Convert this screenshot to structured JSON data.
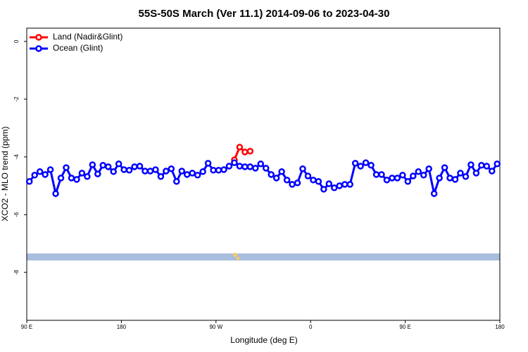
{
  "chart_data": {
    "type": "line",
    "title": "55S-50S March (Ver 11.1)   2014-09-06 to 2023-04-30",
    "xlabel": "Longitude (deg E)",
    "ylabel": "XCO2 - MLO trend (ppm)",
    "xlim": [
      90,
      540
    ],
    "xticks": [
      {
        "value": 90,
        "label": "90 E"
      },
      180,
      {
        "value": 270,
        "label": "90 W"
      },
      {
        "value": 360,
        "label": "0"
      },
      {
        "value": 450,
        "label": "90 E"
      },
      {
        "value": 540,
        "label": "180"
      }
    ],
    "ylim": [
      -9.66,
      0.46
    ],
    "yticks": [
      0,
      -2,
      -4,
      -6,
      -8
    ],
    "legend": "top-left",
    "series": [
      {
        "name": "Land (Nadir&Glint)",
        "color": "#ff0000",
        "x": [
          287.5,
          292.5,
          297.5,
          302.5
        ],
        "values": [
          -4.1,
          -3.66,
          -3.83,
          -3.8
        ]
      },
      {
        "name": "Ocean (Glint)",
        "color": "#0000ff",
        "x": [
          92.5,
          97.5,
          102.5,
          107.5,
          112.5,
          117.5,
          122.5,
          127.5,
          132.5,
          137.5,
          142.5,
          147.5,
          152.5,
          157.5,
          162.5,
          167.5,
          172.5,
          177.5,
          182.5,
          187.5,
          192.5,
          197.5,
          202.5,
          207.5,
          212.5,
          217.5,
          222.5,
          227.5,
          232.5,
          237.5,
          242.5,
          247.5,
          252.5,
          257.5,
          262.5,
          267.5,
          272.5,
          277.5,
          282.5,
          287.5,
          292.5,
          297.5,
          302.5,
          307.5,
          312.5,
          317.5,
          322.5,
          327.5,
          332.5,
          337.5,
          342.5,
          347.5,
          352.5,
          357.5,
          362.5,
          367.5,
          372.5,
          377.5,
          382.5,
          387.5,
          392.5,
          397.5,
          402.5,
          407.5,
          412.5,
          417.5,
          422.5,
          427.5,
          432.5,
          437.5,
          442.5,
          447.5,
          452.5,
          457.5,
          462.5,
          467.5,
          472.5,
          477.5,
          482.5,
          487.5,
          492.5,
          497.5,
          502.5,
          507.5,
          512.5,
          517.5,
          522.5,
          527.5,
          532.5,
          537.5
        ],
        "values": [
          -4.85,
          -4.63,
          -4.51,
          -4.61,
          -4.44,
          -5.27,
          -4.73,
          -4.37,
          -4.73,
          -4.78,
          -4.56,
          -4.68,
          -4.27,
          -4.59,
          -4.29,
          -4.34,
          -4.51,
          -4.24,
          -4.44,
          -4.46,
          -4.34,
          -4.32,
          -4.49,
          -4.49,
          -4.44,
          -4.68,
          -4.49,
          -4.41,
          -4.85,
          -4.49,
          -4.61,
          -4.56,
          -4.63,
          -4.51,
          -4.22,
          -4.46,
          -4.46,
          -4.44,
          -4.32,
          -4.2,
          -4.32,
          -4.34,
          -4.34,
          -4.39,
          -4.24,
          -4.39,
          -4.61,
          -4.73,
          -4.51,
          -4.8,
          -4.95,
          -4.9,
          -4.41,
          -4.66,
          -4.8,
          -4.85,
          -5.12,
          -4.93,
          -5.07,
          -5.0,
          -4.95,
          -4.95,
          -4.22,
          -4.32,
          -4.2,
          -4.29,
          -4.61,
          -4.61,
          -4.8,
          -4.73,
          -4.73,
          -4.63,
          -4.85,
          -4.66,
          -4.51,
          -4.63,
          -4.41,
          -5.27,
          -4.73,
          -4.37,
          -4.73,
          -4.78,
          -4.56,
          -4.68,
          -4.27,
          -4.56,
          -4.29,
          -4.32,
          -4.49,
          -4.24
        ]
      }
    ]
  }
}
